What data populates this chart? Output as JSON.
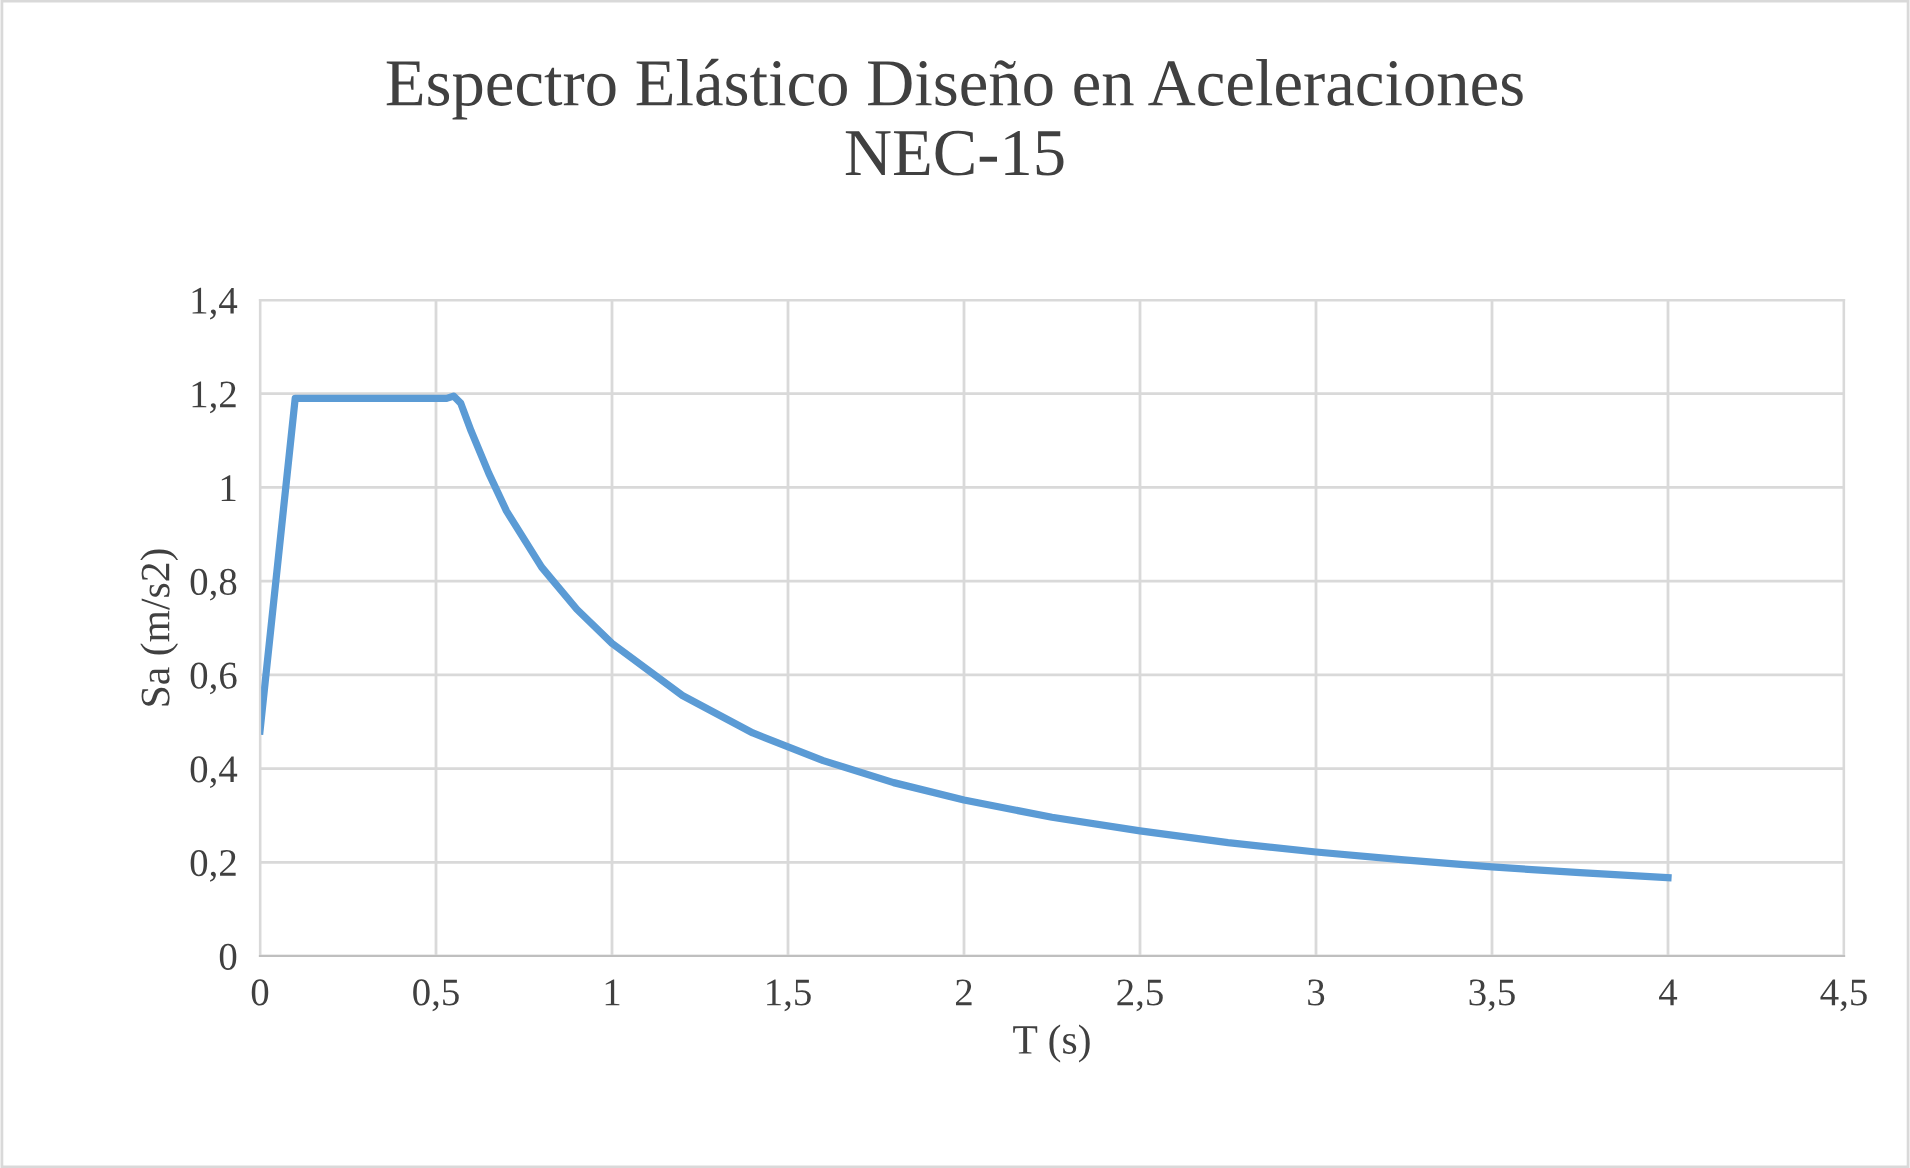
{
  "chart_data": {
    "type": "line",
    "title": "Espectro Elástico Diseño en Aceleraciones\nNEC-15",
    "xlabel": "T (s)",
    "ylabel": "Sa (m/s2)",
    "x": [
      0,
      0.1,
      0.12,
      0.3,
      0.5,
      0.53,
      0.55,
      0.57,
      0.6,
      0.65,
      0.7,
      0.8,
      0.9,
      1,
      1.2,
      1.4,
      1.6,
      1.8,
      2,
      2.25,
      2.5,
      2.75,
      3,
      3.25,
      3.5,
      3.75,
      4
    ],
    "series": [
      {
        "color": "#5b9bd5",
        "values": [
          0.48,
          1.19,
          1.19,
          1.19,
          1.19,
          1.19,
          1.195,
          1.18,
          1.12,
          1.03,
          0.95,
          0.83,
          0.74,
          0.667,
          0.556,
          0.476,
          0.417,
          0.37,
          0.333,
          0.296,
          0.267,
          0.242,
          0.222,
          0.205,
          0.19,
          0.178,
          0.167
        ]
      }
    ],
    "xlim": [
      0,
      4.5
    ],
    "ylim": [
      0,
      1.4
    ],
    "xticks": [
      0,
      {
        "value": 0.5,
        "label": "0,5"
      },
      1,
      {
        "value": 1.5,
        "label": "1,5"
      },
      2,
      {
        "value": 2.5,
        "label": "2,5"
      },
      3,
      {
        "value": 3.5,
        "label": "3,5"
      },
      4,
      {
        "value": 4.5,
        "label": "4,5"
      }
    ],
    "yticks": [
      0,
      {
        "value": 0.2,
        "label": "0,2"
      },
      {
        "value": 0.4,
        "label": "0,4"
      },
      {
        "value": 0.6,
        "label": "0,6"
      },
      {
        "value": 0.8,
        "label": "0,8"
      },
      1,
      {
        "value": 1.2,
        "label": "1,2"
      },
      {
        "value": 1.4,
        "label": "1,4"
      }
    ],
    "grid": true,
    "line_style": "solid"
  }
}
